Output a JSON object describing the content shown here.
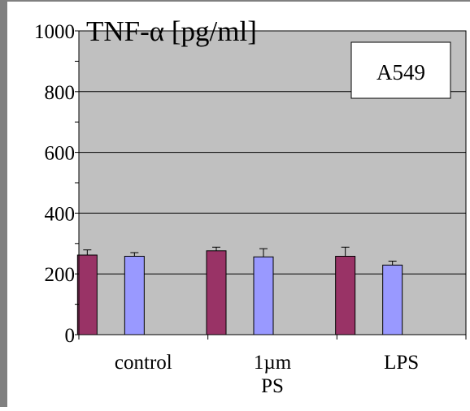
{
  "chart_data": {
    "type": "bar",
    "title": "TNF-α [pg/ml]",
    "xlabel": "",
    "ylabel": "",
    "ylim": [
      0,
      1000
    ],
    "yticks": [
      0,
      200,
      400,
      600,
      800,
      1000
    ],
    "grid": true,
    "categories": [
      "control",
      "1µm\nPS",
      "LPS"
    ],
    "series": [
      {
        "values": [
          262,
          276,
          258
        ],
        "errors": [
          17,
          12,
          30
        ]
      },
      {
        "values": [
          258,
          256,
          229
        ],
        "errors": [
          12,
          27,
          13
        ]
      }
    ],
    "annotation": "A549",
    "colors": {
      "series": [
        "#993366",
        "#9999ff"
      ],
      "plot_background": "#c0c0c0",
      "frame": "#808080"
    }
  }
}
